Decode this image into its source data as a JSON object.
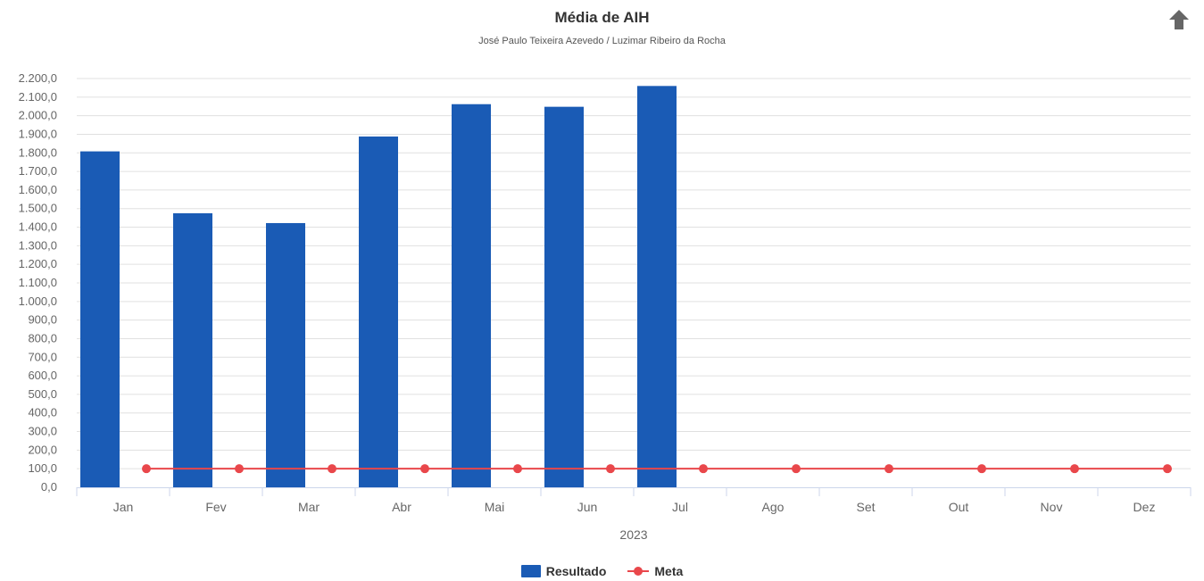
{
  "chart_data": {
    "type": "bar",
    "title": "Média de AIH",
    "subtitle": "José Paulo Teixeira Azevedo / Luzimar Ribeiro da Rocha",
    "categories": [
      "Jan",
      "Fev",
      "Mar",
      "Abr",
      "Mai",
      "Jun",
      "Jul",
      "Ago",
      "Set",
      "Out",
      "Nov",
      "Dez"
    ],
    "xlabel": "2023",
    "ylabel": "",
    "ylim": [
      0,
      2200
    ],
    "ytick_labels": [
      "0,0",
      "100,0",
      "200,0",
      "300,0",
      "400,0",
      "500,0",
      "600,0",
      "700,0",
      "800,0",
      "900,0",
      "1.000,0",
      "1.100,0",
      "1.200,0",
      "1.300,0",
      "1.400,0",
      "1.500,0",
      "1.600,0",
      "1.700,0",
      "1.800,0",
      "1.900,0",
      "2.000,0",
      "2.100,0",
      "2.200,0"
    ],
    "grid": true,
    "legend_position": "bottom-center",
    "series": [
      {
        "name": "Resultado",
        "kind": "bar",
        "color": "#1a5bb5",
        "values": [
          1808,
          1475,
          1422,
          1888,
          2062,
          2048,
          2160,
          null,
          null,
          null,
          null,
          null
        ]
      },
      {
        "name": "Meta",
        "kind": "line",
        "color": "#e9474b",
        "values": [
          100,
          100,
          100,
          100,
          100,
          100,
          100,
          100,
          100,
          100,
          100,
          100
        ]
      }
    ]
  },
  "toolbar": {
    "export_icon": "up-arrow-icon"
  }
}
